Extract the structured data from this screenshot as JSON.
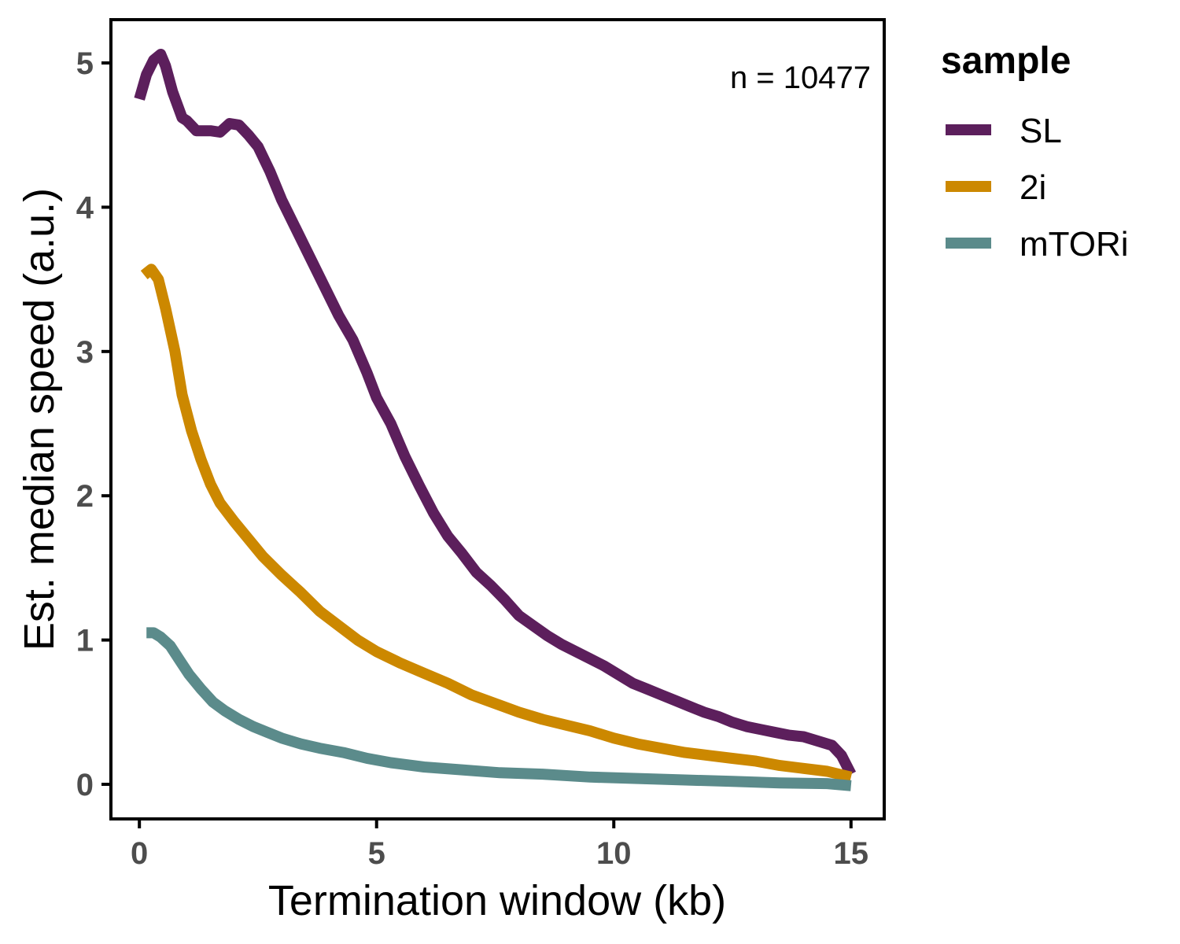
{
  "chart_data": {
    "type": "line",
    "xlabel": "Termination window (kb)",
    "ylabel": "Est. median speed (a.u.)",
    "xlim": [
      -0.6,
      15.7
    ],
    "ylim": [
      -0.24,
      5.3
    ],
    "x_ticks": [
      "0",
      "5",
      "10",
      "15"
    ],
    "y_ticks": [
      "0",
      "1",
      "2",
      "3",
      "4",
      "5"
    ],
    "annotation": "n = 10477",
    "grid": false,
    "legend": {
      "title": "sample",
      "position": "right"
    },
    "series": [
      {
        "name": "SL",
        "color": "#5c1f5c",
        "points": [
          [
            0,
            4.75
          ],
          [
            0.15,
            4.92
          ],
          [
            0.3,
            5.02
          ],
          [
            0.45,
            5.06
          ],
          [
            0.55,
            4.98
          ],
          [
            0.7,
            4.8
          ],
          [
            0.9,
            4.62
          ],
          [
            1.0,
            4.6
          ],
          [
            1.2,
            4.53
          ],
          [
            1.35,
            4.53
          ],
          [
            1.5,
            4.53
          ],
          [
            1.7,
            4.52
          ],
          [
            1.9,
            4.58
          ],
          [
            2.1,
            4.57
          ],
          [
            2.3,
            4.5
          ],
          [
            2.5,
            4.42
          ],
          [
            2.75,
            4.25
          ],
          [
            3.0,
            4.05
          ],
          [
            3.3,
            3.85
          ],
          [
            3.6,
            3.65
          ],
          [
            3.9,
            3.45
          ],
          [
            4.2,
            3.25
          ],
          [
            4.5,
            3.08
          ],
          [
            4.8,
            2.85
          ],
          [
            5.0,
            2.68
          ],
          [
            5.3,
            2.5
          ],
          [
            5.6,
            2.27
          ],
          [
            5.9,
            2.07
          ],
          [
            6.2,
            1.88
          ],
          [
            6.5,
            1.72
          ],
          [
            6.8,
            1.6
          ],
          [
            7.1,
            1.47
          ],
          [
            7.4,
            1.38
          ],
          [
            7.7,
            1.28
          ],
          [
            8.0,
            1.17
          ],
          [
            8.3,
            1.1
          ],
          [
            8.6,
            1.03
          ],
          [
            8.9,
            0.97
          ],
          [
            9.2,
            0.92
          ],
          [
            9.5,
            0.87
          ],
          [
            9.8,
            0.82
          ],
          [
            10.1,
            0.76
          ],
          [
            10.4,
            0.7
          ],
          [
            10.7,
            0.66
          ],
          [
            11.0,
            0.62
          ],
          [
            11.3,
            0.58
          ],
          [
            11.6,
            0.54
          ],
          [
            11.9,
            0.5
          ],
          [
            12.2,
            0.47
          ],
          [
            12.5,
            0.43
          ],
          [
            12.8,
            0.4
          ],
          [
            13.1,
            0.38
          ],
          [
            13.4,
            0.36
          ],
          [
            13.7,
            0.34
          ],
          [
            14.0,
            0.33
          ],
          [
            14.3,
            0.3
          ],
          [
            14.6,
            0.27
          ],
          [
            14.8,
            0.2
          ],
          [
            15.0,
            0.07
          ]
        ]
      },
      {
        "name": "2i",
        "color": "#cc8800",
        "points": [
          [
            0.1,
            3.53
          ],
          [
            0.25,
            3.57
          ],
          [
            0.4,
            3.5
          ],
          [
            0.55,
            3.3
          ],
          [
            0.75,
            3.0
          ],
          [
            0.9,
            2.7
          ],
          [
            1.1,
            2.45
          ],
          [
            1.3,
            2.25
          ],
          [
            1.5,
            2.08
          ],
          [
            1.7,
            1.95
          ],
          [
            2.0,
            1.82
          ],
          [
            2.3,
            1.7
          ],
          [
            2.6,
            1.58
          ],
          [
            3.0,
            1.45
          ],
          [
            3.4,
            1.33
          ],
          [
            3.8,
            1.2
          ],
          [
            4.2,
            1.1
          ],
          [
            4.6,
            1.0
          ],
          [
            5.0,
            0.92
          ],
          [
            5.5,
            0.84
          ],
          [
            6.0,
            0.77
          ],
          [
            6.5,
            0.7
          ],
          [
            7.0,
            0.62
          ],
          [
            7.5,
            0.56
          ],
          [
            8.0,
            0.5
          ],
          [
            8.5,
            0.45
          ],
          [
            9.0,
            0.41
          ],
          [
            9.5,
            0.37
          ],
          [
            10.0,
            0.32
          ],
          [
            10.5,
            0.28
          ],
          [
            11.0,
            0.25
          ],
          [
            11.5,
            0.22
          ],
          [
            12.0,
            0.2
          ],
          [
            12.5,
            0.18
          ],
          [
            13.0,
            0.16
          ],
          [
            13.5,
            0.13
          ],
          [
            14.0,
            0.11
          ],
          [
            14.5,
            0.09
          ],
          [
            15.0,
            0.05
          ]
        ]
      },
      {
        "name": "mTORi",
        "color": "#5b8b8b",
        "points": [
          [
            0.15,
            1.05
          ],
          [
            0.3,
            1.05
          ],
          [
            0.45,
            1.02
          ],
          [
            0.65,
            0.96
          ],
          [
            0.85,
            0.86
          ],
          [
            1.05,
            0.76
          ],
          [
            1.3,
            0.66
          ],
          [
            1.55,
            0.57
          ],
          [
            1.8,
            0.51
          ],
          [
            2.1,
            0.45
          ],
          [
            2.4,
            0.4
          ],
          [
            2.7,
            0.36
          ],
          [
            3.0,
            0.32
          ],
          [
            3.4,
            0.28
          ],
          [
            3.8,
            0.25
          ],
          [
            4.3,
            0.22
          ],
          [
            4.8,
            0.18
          ],
          [
            5.3,
            0.15
          ],
          [
            6.0,
            0.12
          ],
          [
            6.8,
            0.1
          ],
          [
            7.6,
            0.08
          ],
          [
            8.5,
            0.07
          ],
          [
            9.5,
            0.05
          ],
          [
            10.5,
            0.04
          ],
          [
            11.5,
            0.03
          ],
          [
            12.5,
            0.02
          ],
          [
            13.5,
            0.01
          ],
          [
            14.5,
            0.005
          ],
          [
            15.0,
            -0.01
          ]
        ]
      }
    ]
  }
}
